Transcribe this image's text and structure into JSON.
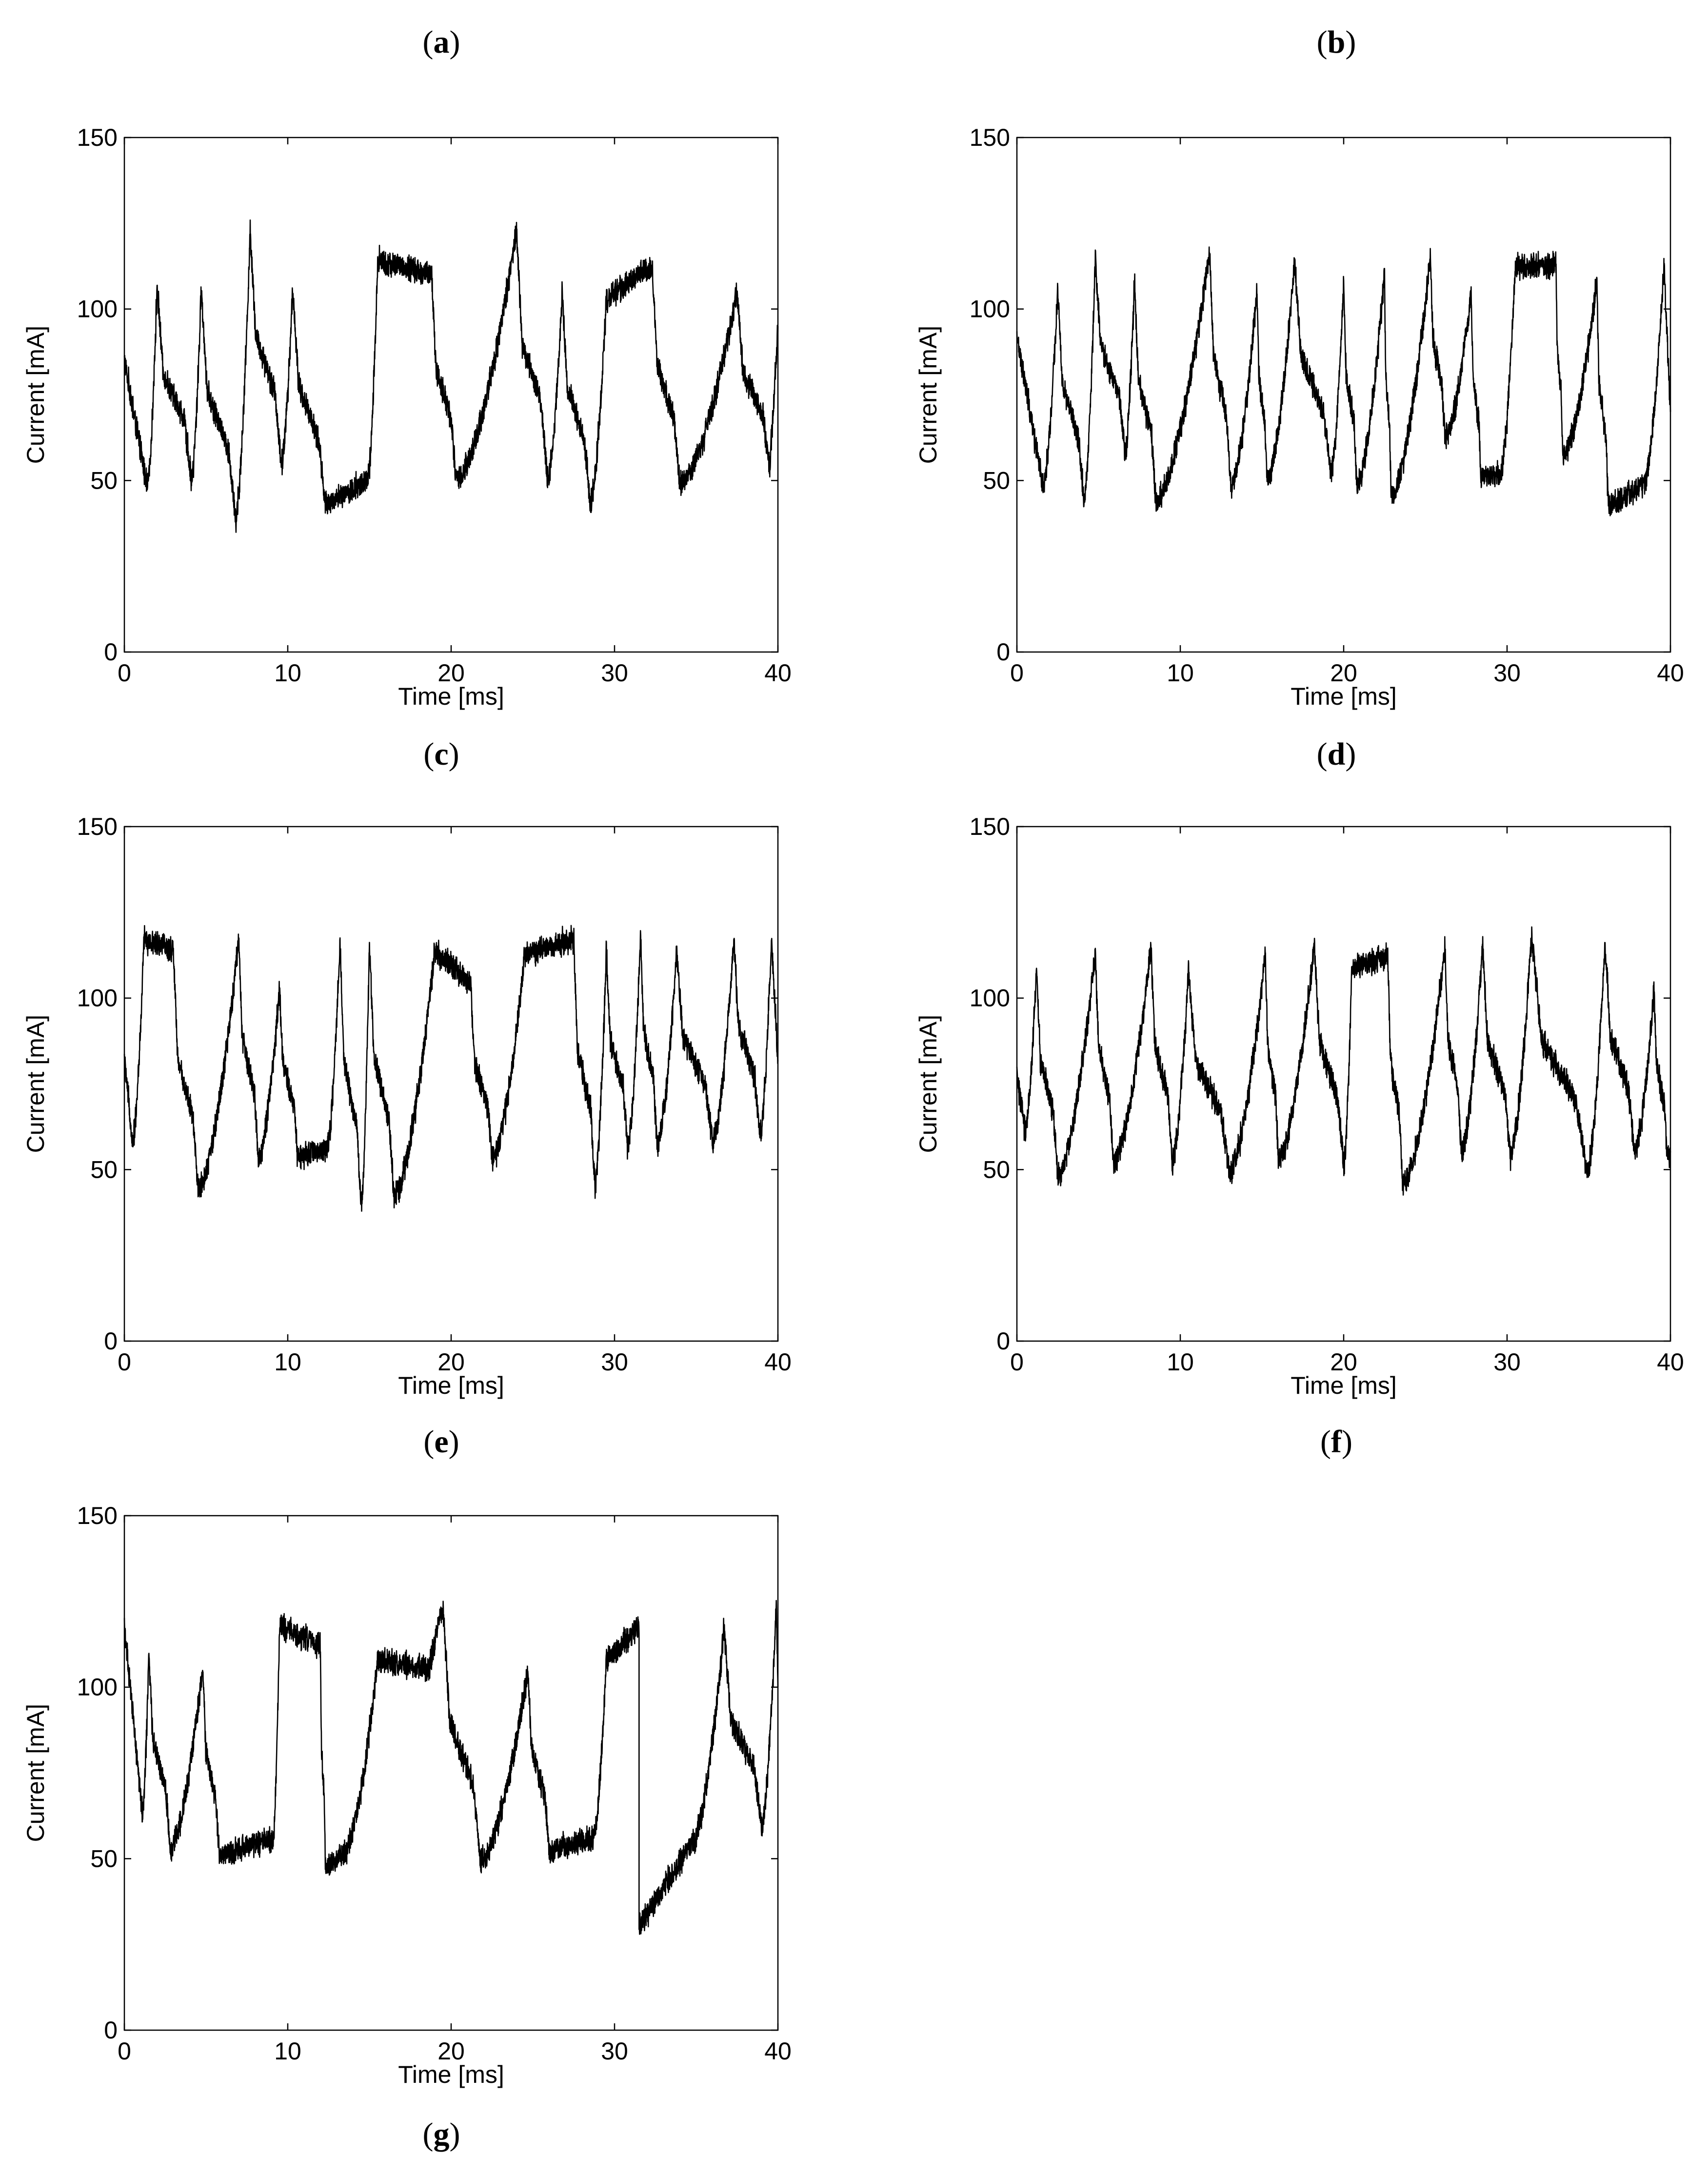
{
  "chart_data": [
    {
      "panel": "a",
      "type": "line",
      "xlabel": "Time [ms]",
      "ylabel": "Current [mA]",
      "xlim": [
        0,
        40
      ],
      "ylim": [
        0,
        150
      ],
      "xticks": [
        0,
        10,
        20,
        30,
        40
      ],
      "yticks": [
        0,
        50,
        100,
        150
      ],
      "series": [
        {
          "peaks_x": [
            2.0,
            4.7,
            7.7,
            10.3,
            15.5,
            18.8,
            24.0,
            26.8,
            29.5,
            32.3,
            37.5
          ],
          "peaks_y": [
            107,
            106,
            123,
            106,
            114,
            110,
            123,
            105,
            103,
            113,
            105
          ],
          "troughs_x": [
            1.4,
            4.1,
            6.8,
            9.6,
            12.3,
            14.9,
            20.3,
            25.9,
            28.5,
            34.0,
            39.5
          ],
          "troughs_y": [
            48,
            50,
            39,
            55,
            43,
            50,
            50,
            50,
            43,
            49,
            53
          ],
          "x_start": 0,
          "y_start": 85,
          "x_end": 40,
          "y_end": 95
        }
      ]
    },
    {
      "panel": "b",
      "type": "line",
      "xlabel": "Time [ms]",
      "ylabel": "Current [mA]",
      "xlim": [
        0,
        40
      ],
      "ylim": [
        0,
        150
      ],
      "xticks": [
        0,
        10,
        20,
        30,
        40
      ],
      "yticks": [
        0,
        50,
        100,
        150
      ],
      "series": [
        {
          "peaks_x": [
            2.5,
            4.8,
            7.2,
            11.8,
            14.7,
            17.0,
            20.0,
            22.5,
            25.3,
            27.8,
            30.5,
            33.0,
            35.5,
            39.6
          ],
          "peaks_y": [
            106,
            115,
            108,
            117,
            106,
            114,
            108,
            110,
            115,
            105,
            112,
            113,
            108,
            113
          ],
          "troughs_x": [
            1.6,
            4.1,
            6.6,
            8.5,
            13.1,
            15.3,
            19.2,
            20.8,
            22.9,
            26.2,
            28.4,
            29.6,
            33.4,
            36.2,
            38.4
          ],
          "troughs_y": [
            48,
            44,
            58,
            44,
            48,
            50,
            52,
            48,
            45,
            62,
            50,
            52,
            57,
            42,
            49
          ],
          "x_start": 0,
          "y_start": 92,
          "x_end": 40,
          "y_end": 70
        }
      ]
    },
    {
      "panel": "c",
      "type": "line",
      "xlabel": "Time [ms]",
      "ylabel": "Current [mA]",
      "xlim": [
        0,
        40
      ],
      "ylim": [
        0,
        150
      ],
      "xticks": [
        0,
        10,
        20,
        30,
        40
      ],
      "yticks": [
        0,
        50,
        100,
        150
      ],
      "series": [
        {
          "peaks_x": [
            1.2,
            3.0,
            7.0,
            9.5,
            13.2,
            15.0,
            19.0,
            21.2,
            24.5,
            27.5,
            29.5,
            31.6,
            33.8,
            37.3,
            39.6
          ],
          "peaks_y": [
            117,
            114,
            117,
            103,
            116,
            117,
            114,
            104,
            113,
            117,
            114,
            118,
            113,
            117,
            117
          ],
          "troughs_x": [
            0.5,
            4.5,
            8.2,
            10.6,
            12.4,
            14.5,
            16.5,
            22.5,
            28.8,
            30.8,
            32.6,
            36.0,
            38.9
          ],
          "troughs_y": [
            58,
            44,
            53,
            54,
            56,
            39,
            42,
            53,
            46,
            56,
            57,
            58,
            60
          ],
          "x_start": 0,
          "y_start": 82,
          "x_end": 40,
          "y_end": 82
        }
      ]
    },
    {
      "panel": "d",
      "type": "line",
      "xlabel": "Time [ms]",
      "ylabel": "Current [mA]",
      "xlim": [
        0,
        40
      ],
      "ylim": [
        0,
        150
      ],
      "xticks": [
        0,
        10,
        20,
        30,
        40
      ],
      "yticks": [
        0,
        50,
        100,
        150
      ],
      "series": [
        {
          "peaks_x": [
            1.2,
            4.8,
            8.2,
            10.5,
            15.2,
            18.2,
            20.5,
            22.7,
            26.2,
            28.5,
            31.5,
            36.0,
            39.0
          ],
          "peaks_y": [
            109,
            113,
            115,
            108,
            113,
            116,
            109,
            112,
            115,
            115,
            119,
            116,
            103
          ],
          "troughs_x": [
            0.5,
            2.5,
            5.9,
            9.5,
            13.0,
            16.0,
            20.0,
            23.6,
            27.2,
            30.2,
            34.9,
            37.8,
            39.8
          ],
          "troughs_y": [
            61,
            48,
            52,
            52,
            49,
            53,
            51,
            45,
            55,
            54,
            49,
            55,
            53
          ],
          "x_start": 0,
          "y_start": 78,
          "x_end": 40,
          "y_end": 55
        }
      ]
    },
    {
      "panel": "e",
      "type": "line",
      "xlabel": "Time [ms]",
      "ylabel": "Current [mA]",
      "xlim": [
        0,
        40
      ],
      "ylim": [
        0,
        150
      ],
      "xticks": [
        0,
        10,
        20,
        30,
        40
      ],
      "yticks": [
        0,
        50,
        100,
        150
      ],
      "series": [
        {
          "peaks_x": [
            1.5,
            4.8,
            9.5,
            12.0,
            15.5,
            18.6,
            19.5,
            24.7,
            29.5,
            31.5,
            36.7,
            39.9
          ],
          "peaks_y": [
            111,
            106,
            118,
            112,
            108,
            105,
            124,
            105,
            108,
            118,
            117,
            124
          ],
          "troughs_x": [
            1.1,
            2.8,
            5.8,
            9.1,
            12.3,
            13.5,
            21.8,
            26.0,
            28.7,
            31.5,
            34.8,
            39.0
          ],
          "troughs_y": [
            63,
            53,
            51,
            56,
            47,
            52,
            49,
            52,
            56,
            30,
            55,
            59
          ],
          "x_start": 0,
          "y_start": 118,
          "x_end": 40,
          "y_end": 100
        }
      ]
    }
  ]
}
